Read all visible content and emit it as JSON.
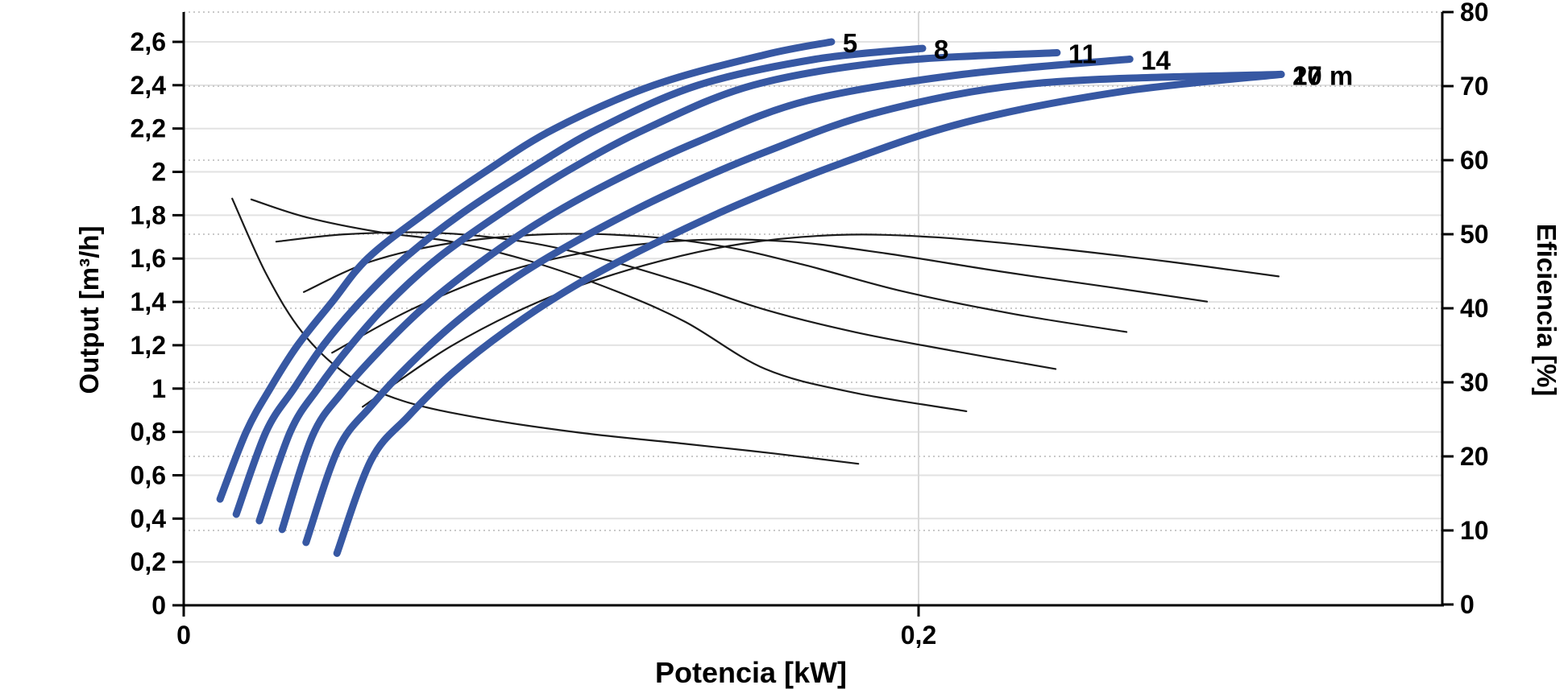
{
  "chart_data": {
    "type": "line",
    "title": "",
    "xlabel": "Potencia [kW]",
    "ylabel_left": "Output [m³/h]",
    "ylabel_right": "Eficiencia [%]",
    "xlim": [
      0,
      0.3425
    ],
    "ylim_left": [
      0,
      2.6
    ],
    "ylim_right": [
      0,
      80
    ],
    "grid": {
      "horizontal_solid_every": 0.2,
      "horizontal_dotted_every_right": 10,
      "vertical_gridline_at": 0.2
    },
    "x_ticks": [
      {
        "value": 0,
        "label": "0"
      },
      {
        "value": 0.2,
        "label": "0,2"
      }
    ],
    "y_left_ticks": [
      {
        "value": 0,
        "label": "0"
      },
      {
        "value": 0.2,
        "label": "0,2"
      },
      {
        "value": 0.4,
        "label": "0,4"
      },
      {
        "value": 0.6,
        "label": "0,6"
      },
      {
        "value": 0.8,
        "label": "0,8"
      },
      {
        "value": 1.0,
        "label": "1"
      },
      {
        "value": 1.2,
        "label": "1,2"
      },
      {
        "value": 1.4,
        "label": "1,4"
      },
      {
        "value": 1.6,
        "label": "1,6"
      },
      {
        "value": 1.8,
        "label": "1,8"
      },
      {
        "value": 2.0,
        "label": "2"
      },
      {
        "value": 2.2,
        "label": "2,2"
      },
      {
        "value": 2.4,
        "label": "2,4"
      },
      {
        "value": 2.6,
        "label": "2,6"
      }
    ],
    "y_right_ticks": [
      {
        "value": 0,
        "label": "0"
      },
      {
        "value": 10,
        "label": "10"
      },
      {
        "value": 20,
        "label": "20"
      },
      {
        "value": 30,
        "label": "30"
      },
      {
        "value": 40,
        "label": "40"
      },
      {
        "value": 50,
        "label": "50"
      },
      {
        "value": 60,
        "label": "60"
      },
      {
        "value": 70,
        "label": "70"
      },
      {
        "value": 80,
        "label": "80"
      }
    ],
    "colors": {
      "flow_curve": "#3758A3",
      "efficiency_curve": "#1b1b1b",
      "grid_solid": "#e2e2e2",
      "grid_dotted": "#c9c9c9",
      "grid_vertical": "#d9d9d9",
      "axis": "#000000"
    },
    "series": [
      {
        "name": "5 m",
        "head_m": 5,
        "label": "5",
        "points": [
          [
            0.0099,
            0.49
          ],
          [
            0.017,
            0.8
          ],
          [
            0.0235,
            1.0
          ],
          [
            0.031,
            1.2
          ],
          [
            0.0404,
            1.4
          ],
          [
            0.05,
            1.6
          ],
          [
            0.065,
            1.8
          ],
          [
            0.082,
            2.0
          ],
          [
            0.101,
            2.2
          ],
          [
            0.128,
            2.4
          ],
          [
            0.158,
            2.54
          ],
          [
            0.1763,
            2.6
          ]
        ]
      },
      {
        "name": "8 m",
        "head_m": 8,
        "label": "8",
        "points": [
          [
            0.0143,
            0.42
          ],
          [
            0.0224,
            0.8
          ],
          [
            0.03,
            1.0
          ],
          [
            0.038,
            1.2
          ],
          [
            0.048,
            1.4
          ],
          [
            0.06,
            1.6
          ],
          [
            0.075,
            1.8
          ],
          [
            0.093,
            2.0
          ],
          [
            0.113,
            2.2
          ],
          [
            0.14,
            2.4
          ],
          [
            0.172,
            2.52
          ],
          [
            0.2011,
            2.57
          ]
        ]
      },
      {
        "name": "11 m",
        "head_m": 11,
        "label": "11",
        "points": [
          [
            0.0206,
            0.39
          ],
          [
            0.029,
            0.8
          ],
          [
            0.0365,
            1.0
          ],
          [
            0.0455,
            1.2
          ],
          [
            0.056,
            1.4
          ],
          [
            0.069,
            1.6
          ],
          [
            0.0855,
            1.8
          ],
          [
            0.104,
            2.0
          ],
          [
            0.126,
            2.2
          ],
          [
            0.155,
            2.4
          ],
          [
            0.193,
            2.51
          ],
          [
            0.2377,
            2.55
          ]
        ]
      },
      {
        "name": "14 m",
        "head_m": 14,
        "label": "14",
        "points": [
          [
            0.0268,
            0.35
          ],
          [
            0.035,
            0.78
          ],
          [
            0.043,
            0.98
          ],
          [
            0.053,
            1.17
          ],
          [
            0.065,
            1.37
          ],
          [
            0.079,
            1.56
          ],
          [
            0.096,
            1.76
          ],
          [
            0.116,
            1.95
          ],
          [
            0.14,
            2.14
          ],
          [
            0.17,
            2.33
          ],
          [
            0.212,
            2.45
          ],
          [
            0.2575,
            2.52
          ]
        ]
      },
      {
        "name": "17 m",
        "head_m": 17,
        "label": "17",
        "points": [
          [
            0.0333,
            0.29
          ],
          [
            0.042,
            0.72
          ],
          [
            0.051,
            0.92
          ],
          [
            0.062,
            1.12
          ],
          [
            0.075,
            1.32
          ],
          [
            0.091,
            1.52
          ],
          [
            0.11,
            1.71
          ],
          [
            0.132,
            1.9
          ],
          [
            0.158,
            2.09
          ],
          [
            0.19,
            2.28
          ],
          [
            0.233,
            2.41
          ],
          [
            0.2987,
            2.45
          ]
        ]
      },
      {
        "name": "20 m",
        "head_m": 20,
        "label": "20 m",
        "points": [
          [
            0.0417,
            0.24
          ],
          [
            0.051,
            0.67
          ],
          [
            0.061,
            0.87
          ],
          [
            0.073,
            1.07
          ],
          [
            0.088,
            1.27
          ],
          [
            0.106,
            1.47
          ],
          [
            0.127,
            1.66
          ],
          [
            0.151,
            1.85
          ],
          [
            0.179,
            2.04
          ],
          [
            0.213,
            2.23
          ],
          [
            0.255,
            2.37
          ],
          [
            0.2987,
            2.45
          ]
        ]
      }
    ],
    "efficiency_series": [
      {
        "name": "5 m",
        "head_m": 5,
        "points": [
          [
            0.0132,
            54.8
          ],
          [
            0.0224,
            44.7
          ],
          [
            0.0322,
            36.8
          ],
          [
            0.0443,
            31.1
          ],
          [
            0.0596,
            27.5
          ],
          [
            0.0816,
            25.1
          ],
          [
            0.1079,
            23.2
          ],
          [
            0.1364,
            21.7
          ],
          [
            0.1605,
            20.4
          ],
          [
            0.1836,
            19.0
          ]
        ]
      },
      {
        "name": "8 m",
        "head_m": 8,
        "points": [
          [
            0.0184,
            54.7
          ],
          [
            0.0333,
            52.3
          ],
          [
            0.0531,
            50.3
          ],
          [
            0.0728,
            49.0
          ],
          [
            0.0947,
            46.3
          ],
          [
            0.1167,
            42.5
          ],
          [
            0.1364,
            38.2
          ],
          [
            0.1583,
            31.8
          ],
          [
            0.1825,
            28.6
          ],
          [
            0.213,
            26.1
          ]
        ]
      },
      {
        "name": "11 m",
        "head_m": 11,
        "points": [
          [
            0.0252,
            49.0
          ],
          [
            0.0443,
            50.0
          ],
          [
            0.0684,
            50.2
          ],
          [
            0.0925,
            49.0
          ],
          [
            0.1145,
            46.6
          ],
          [
            0.1364,
            43.4
          ],
          [
            0.1583,
            39.8
          ],
          [
            0.1825,
            36.8
          ],
          [
            0.2088,
            34.3
          ],
          [
            0.2373,
            31.8
          ]
        ]
      },
      {
        "name": "14 m",
        "head_m": 14,
        "points": [
          [
            0.0327,
            42.2
          ],
          [
            0.0509,
            46.3
          ],
          [
            0.0728,
            48.8
          ],
          [
            0.0991,
            50.0
          ],
          [
            0.1254,
            49.7
          ],
          [
            0.1474,
            48.3
          ],
          [
            0.1693,
            45.8
          ],
          [
            0.1956,
            42.3
          ],
          [
            0.2263,
            39.2
          ],
          [
            0.2566,
            36.8
          ]
        ]
      },
      {
        "name": "17 m",
        "head_m": 17,
        "points": [
          [
            0.0404,
            34.0
          ],
          [
            0.0618,
            39.8
          ],
          [
            0.086,
            44.7
          ],
          [
            0.1123,
            47.8
          ],
          [
            0.1386,
            49.2
          ],
          [
            0.1649,
            49.0
          ],
          [
            0.1912,
            47.4
          ],
          [
            0.2219,
            45.0
          ],
          [
            0.2526,
            42.8
          ],
          [
            0.2785,
            40.9
          ]
        ]
      },
      {
        "name": "20 m",
        "head_m": 20,
        "points": [
          [
            0.0487,
            26.7
          ],
          [
            0.0728,
            34.9
          ],
          [
            0.0991,
            41.4
          ],
          [
            0.1254,
            45.8
          ],
          [
            0.1518,
            48.7
          ],
          [
            0.1781,
            49.9
          ],
          [
            0.2044,
            49.6
          ],
          [
            0.2351,
            48.2
          ],
          [
            0.268,
            46.3
          ],
          [
            0.298,
            44.3
          ]
        ]
      }
    ]
  }
}
